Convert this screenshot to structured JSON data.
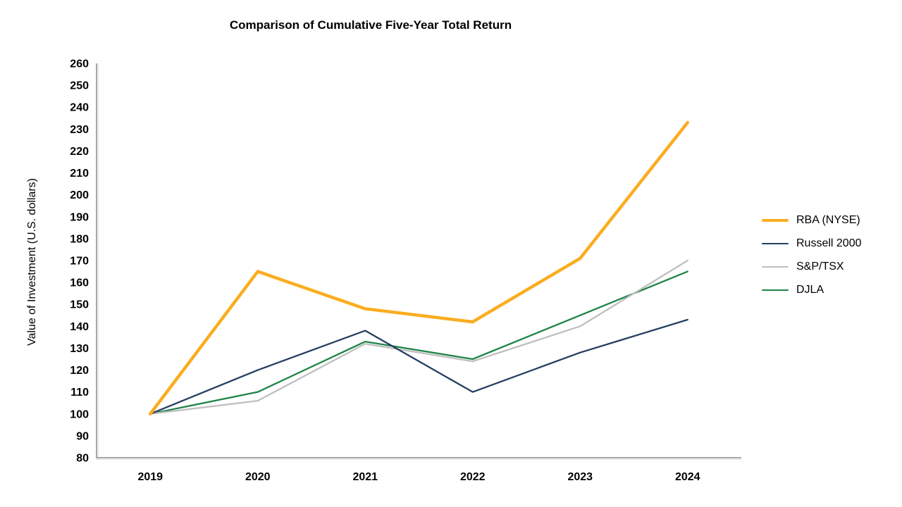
{
  "page": {
    "background_color": "#ffffff",
    "text_color": "#000000"
  },
  "chart_data": {
    "type": "line",
    "title": "Comparison of Cumulative Five-Year Total Return",
    "xlabel": "",
    "ylabel": "Value of Investment (U.S. dollars)",
    "categories": [
      "2019",
      "2020",
      "2021",
      "2022",
      "2023",
      "2024"
    ],
    "series": [
      {
        "name": "RBA (NYSE)",
        "color": "#FBAD1F",
        "line_width": 4.5,
        "values": [
          100,
          165,
          148,
          142,
          171,
          233
        ]
      },
      {
        "name": "Russell 2000",
        "color": "#243F61",
        "line_width": 2.3,
        "values": [
          100,
          120,
          138,
          110,
          128,
          143
        ]
      },
      {
        "name": "S&P/TSX",
        "color": "#BFBFBF",
        "line_width": 2.3,
        "values": [
          100,
          106,
          132,
          124,
          140,
          170
        ]
      },
      {
        "name": "DJLA",
        "color": "#1E8449",
        "line_width": 2.3,
        "values": [
          100,
          110,
          133,
          125,
          145,
          165
        ]
      }
    ],
    "ylim": [
      80,
      260
    ],
    "ytick_step": 10,
    "grid": false,
    "legend_position": "right",
    "axis_color": "#A6A6A6",
    "axis_shadow_color": "#D9D9D9"
  }
}
